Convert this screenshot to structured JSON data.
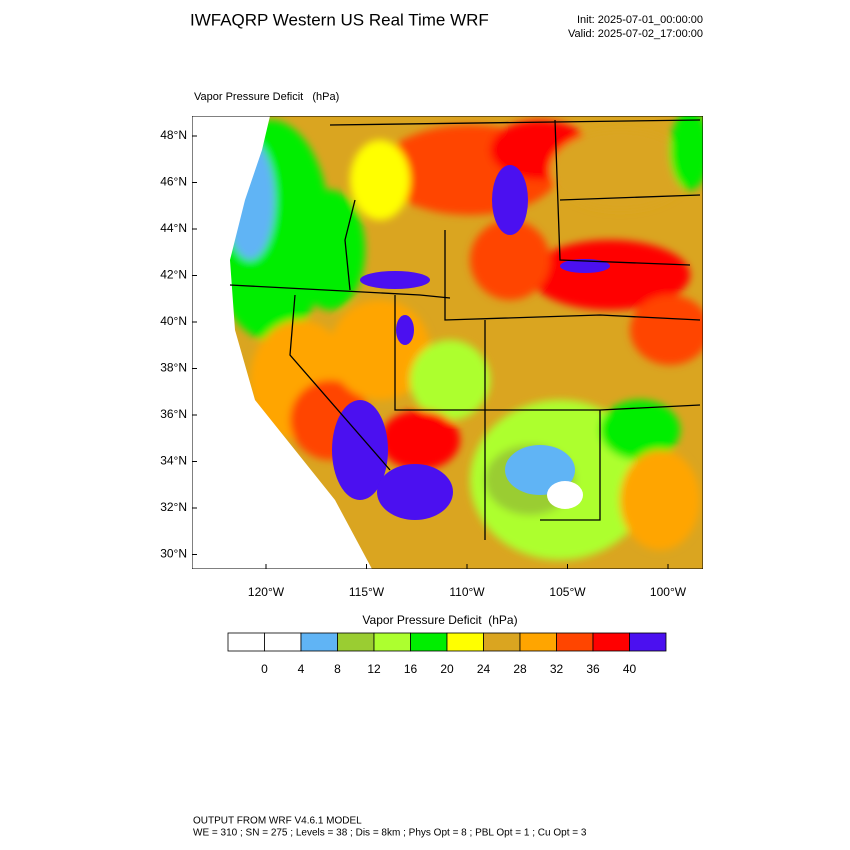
{
  "header": {
    "title": "IWFAQRP Western US Real Time WRF",
    "init": "Init: 2025-07-01_00:00:00",
    "valid": "Valid: 2025-07-02_17:00:00"
  },
  "map": {
    "field_label": "Vapor Pressure Deficit   (hPa)",
    "lat_labels": [
      "48°N",
      "46°N",
      "44°N",
      "42°N",
      "40°N",
      "38°N",
      "36°N",
      "34°N",
      "32°N",
      "30°N"
    ],
    "lon_labels": [
      "120°W",
      "115°W",
      "110°W",
      "105°W",
      "100°W"
    ]
  },
  "colorbar": {
    "title": "Vapor Pressure Deficit  (hPa)",
    "labels": [
      0,
      4,
      8,
      12,
      16,
      20,
      24,
      28,
      32,
      36,
      40
    ],
    "colors": [
      "#ffffff",
      "#ffffff",
      "#60b4f5",
      "#9acd32",
      "#adff2f",
      "#00ee00",
      "#ffff00",
      "#daa520",
      "#ffa500",
      "#ff4500",
      "#ff0000",
      "#4b10f0"
    ]
  },
  "footer": {
    "line1": "OUTPUT FROM WRF V4.6.1 MODEL",
    "line2": "WE = 310 ; SN = 275 ; Levels = 38 ; Dis = 8km ; Phys Opt = 8 ; PBL Opt = 1 ; Cu Opt = 3"
  }
}
